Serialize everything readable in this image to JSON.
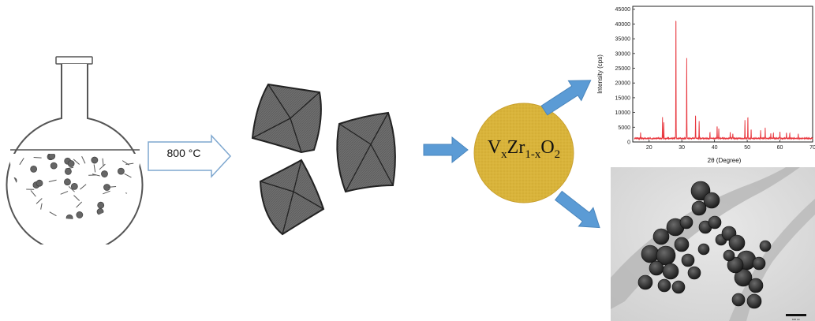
{
  "step1": {
    "label": "800 °C"
  },
  "product": {
    "formula_main_1": "V",
    "formula_sub_1": "x",
    "formula_main_2": "Zr",
    "formula_sub_2": "1-x",
    "formula_main_3": "O",
    "formula_sub_3": "2",
    "fill_color": "#d9b43a"
  },
  "tem": {
    "scale_bar_label": "100 nm"
  },
  "chart_data": {
    "type": "line",
    "xlabel": "2θ (Degree)",
    "ylabel": "Intensity (cps)",
    "xlim": [
      15,
      70
    ],
    "ylim": [
      0,
      46000
    ],
    "x_ticks": [
      20,
      30,
      40,
      50,
      60,
      70
    ],
    "y_ticks": [
      0,
      5000,
      10000,
      15000,
      20000,
      25000,
      30000,
      35000,
      40000,
      45000
    ],
    "x_tick_labels": [
      "20",
      "30",
      "40",
      "50",
      "60",
      "70"
    ],
    "y_tick_labels": [
      "0",
      "5000",
      "10000",
      "15000",
      "20000",
      "25000",
      "30000",
      "35000",
      "40000",
      "45000"
    ],
    "line_color": "#e8373e",
    "baseline": 1200,
    "peaks": [
      {
        "x": 17.4,
        "y": 3200
      },
      {
        "x": 24.1,
        "y": 8500
      },
      {
        "x": 24.5,
        "y": 6500
      },
      {
        "x": 28.2,
        "y": 45000
      },
      {
        "x": 31.5,
        "y": 28500
      },
      {
        "x": 34.2,
        "y": 9500
      },
      {
        "x": 35.3,
        "y": 7000
      },
      {
        "x": 38.6,
        "y": 3500
      },
      {
        "x": 40.8,
        "y": 5500
      },
      {
        "x": 41.3,
        "y": 4500
      },
      {
        "x": 44.8,
        "y": 3500
      },
      {
        "x": 45.6,
        "y": 3000
      },
      {
        "x": 49.3,
        "y": 7500
      },
      {
        "x": 50.2,
        "y": 9000
      },
      {
        "x": 51.2,
        "y": 4500
      },
      {
        "x": 54.1,
        "y": 4000
      },
      {
        "x": 55.5,
        "y": 4800
      },
      {
        "x": 57.2,
        "y": 3000
      },
      {
        "x": 58.0,
        "y": 3200
      },
      {
        "x": 60.0,
        "y": 3500
      },
      {
        "x": 62.0,
        "y": 3200
      },
      {
        "x": 63.0,
        "y": 3000
      },
      {
        "x": 65.6,
        "y": 2800
      }
    ]
  }
}
